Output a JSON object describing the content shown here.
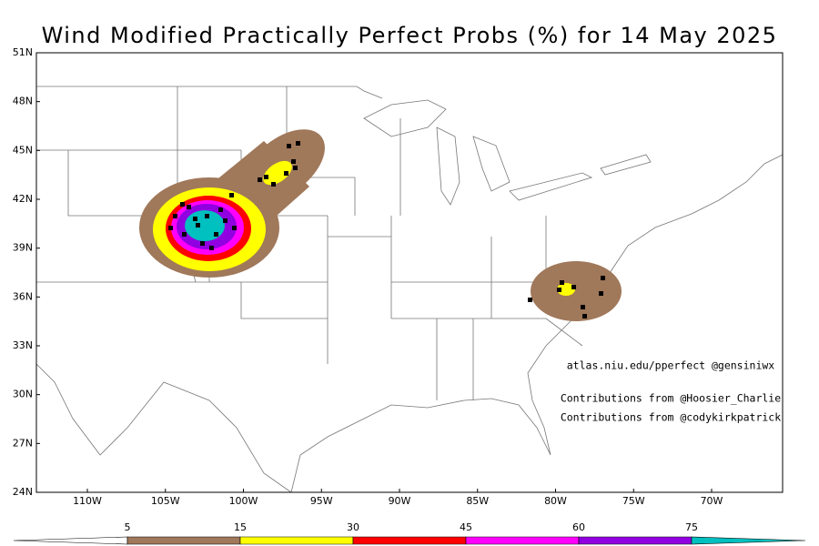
{
  "title": "Wind Modified Practically Perfect Probs (%) for 14 May 2025",
  "lat_labels": [
    "51N",
    "48N",
    "45N",
    "42N",
    "39N",
    "36N",
    "33N",
    "30N",
    "27N",
    "24N"
  ],
  "lon_labels": [
    "110W",
    "105W",
    "100W",
    "95W",
    "90W",
    "85W",
    "80W",
    "75W",
    "70W"
  ],
  "annotations": [
    "atlas.niu.edu/pperfect @gensiniwx",
    "Contributions from @Hoosier_Charlie",
    "Contributions from @codykirkpatrick"
  ],
  "colorbar": {
    "levels": [
      5,
      15,
      30,
      45,
      60,
      75
    ],
    "colors": [
      "#ffffff",
      "#a0785a",
      "#ffff00",
      "#ff0000",
      "#ff00ff",
      "#9000e0",
      "#00c0c0"
    ]
  }
}
